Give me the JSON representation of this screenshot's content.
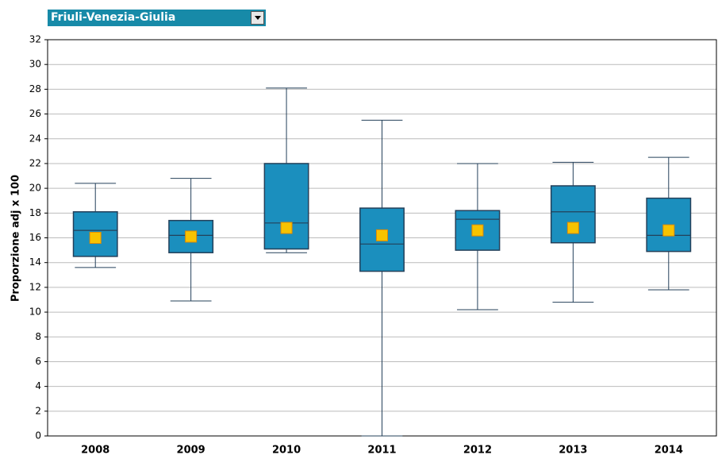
{
  "dropdown": {
    "selected": "Friuli-Venezia-Giulia"
  },
  "chart_data": {
    "type": "box",
    "y_label": "Proporzione adj x 100",
    "categories": [
      "2008",
      "2009",
      "2010",
      "2011",
      "2012",
      "2013",
      "2014"
    ],
    "boxes": [
      {
        "min": 13.6,
        "q1": 14.5,
        "median": 16.6,
        "q3": 18.1,
        "max": 20.4,
        "mean": 16.0
      },
      {
        "min": 10.9,
        "q1": 14.8,
        "median": 16.2,
        "q3": 17.4,
        "max": 20.8,
        "mean": 16.1
      },
      {
        "min": 14.8,
        "q1": 15.1,
        "median": 17.2,
        "q3": 22.0,
        "max": 28.1,
        "mean": 16.8
      },
      {
        "min": 0,
        "q1": 13.3,
        "median": 15.5,
        "q3": 18.4,
        "max": 25.5,
        "mean": 16.2
      },
      {
        "min": 10.2,
        "q1": 15.0,
        "median": 17.5,
        "q3": 18.2,
        "max": 22.0,
        "mean": 16.6
      },
      {
        "min": 10.8,
        "q1": 15.6,
        "median": 18.1,
        "q3": 20.2,
        "max": 22.1,
        "mean": 16.8
      },
      {
        "min": 11.8,
        "q1": 14.9,
        "median": 16.2,
        "q3": 19.2,
        "max": 22.5,
        "mean": 16.6
      }
    ],
    "color": "#1b8fbe",
    "mean_color": "#f7c300",
    "ylim": [
      0,
      32
    ],
    "yticks": [
      0,
      2,
      4,
      6,
      8,
      10,
      12,
      14,
      16,
      18,
      20,
      22,
      24,
      26,
      28,
      30,
      32
    ],
    "grid": true
  }
}
